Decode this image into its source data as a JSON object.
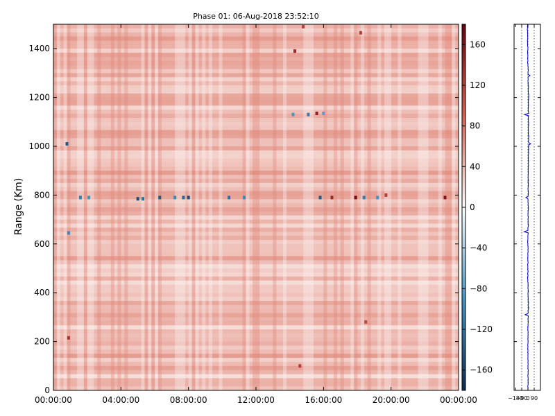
{
  "chart_data": [
    {
      "type": "heatmap",
      "title": "Phase 01: 06-Aug-2018 23:52:10",
      "xlabel": "",
      "ylabel": "Range (Km)",
      "x_ticks": [
        "00:00:00",
        "04:00:00",
        "08:00:00",
        "12:00:00",
        "16:00:00",
        "20:00:00",
        "00:00:00"
      ],
      "x_range_hours": [
        0,
        24
      ],
      "y_ticks": [
        0,
        200,
        400,
        600,
        800,
        1000,
        1200,
        1400
      ],
      "ylim": [
        0,
        1500
      ],
      "colorbar": {
        "ticks": [
          160,
          120,
          80,
          40,
          0,
          -40,
          -80,
          -120,
          -160
        ],
        "range": [
          -180,
          180
        ],
        "colors": {
          "low": "#0b2a55",
          "mid": "#ffffff",
          "high": "#67000d"
        }
      },
      "background_value": 35,
      "stripes_value_range": [
        15,
        65
      ],
      "hotspots": [
        {
          "hour": 0.8,
          "range": 1010,
          "value": -140
        },
        {
          "hour": 0.9,
          "range": 645,
          "value": -100
        },
        {
          "hour": 0.9,
          "range": 215,
          "value": 130
        },
        {
          "hour": 1.6,
          "range": 790,
          "value": -110
        },
        {
          "hour": 2.1,
          "range": 790,
          "value": -90
        },
        {
          "hour": 5.0,
          "range": 785,
          "value": -150
        },
        {
          "hour": 5.3,
          "range": 785,
          "value": -120
        },
        {
          "hour": 6.3,
          "range": 790,
          "value": -140
        },
        {
          "hour": 7.2,
          "range": 790,
          "value": -100
        },
        {
          "hour": 7.7,
          "range": 790,
          "value": -130
        },
        {
          "hour": 8.0,
          "range": 790,
          "value": -150
        },
        {
          "hour": 10.4,
          "range": 790,
          "value": -120
        },
        {
          "hour": 11.3,
          "range": 790,
          "value": -100
        },
        {
          "hour": 14.2,
          "range": 1130,
          "value": -90
        },
        {
          "hour": 15.1,
          "range": 1130,
          "value": -110
        },
        {
          "hour": 15.6,
          "range": 1135,
          "value": 150
        },
        {
          "hour": 16.0,
          "range": 1135,
          "value": -80
        },
        {
          "hour": 15.8,
          "range": 790,
          "value": -140
        },
        {
          "hour": 16.5,
          "range": 790,
          "value": 140
        },
        {
          "hour": 17.9,
          "range": 790,
          "value": 170
        },
        {
          "hour": 18.4,
          "range": 790,
          "value": -110
        },
        {
          "hour": 19.2,
          "range": 790,
          "value": -90
        },
        {
          "hour": 14.3,
          "range": 1390,
          "value": 140
        },
        {
          "hour": 14.8,
          "range": 1490,
          "value": 120
        },
        {
          "hour": 18.2,
          "range": 1465,
          "value": 120
        },
        {
          "hour": 19.7,
          "range": 800,
          "value": 120
        },
        {
          "hour": 23.2,
          "range": 790,
          "value": 160
        },
        {
          "hour": 14.6,
          "range": 100,
          "value": 120
        },
        {
          "hour": 18.5,
          "range": 280,
          "value": 110
        }
      ]
    },
    {
      "type": "line",
      "title": "",
      "xlabel": "",
      "ylabel": "",
      "x_ticks": [
        -180,
        -90,
        0,
        90
      ],
      "x_tick_labels": [
        "−180",
        "−90",
        "0",
        "90"
      ],
      "xlim": [
        -200,
        180
      ],
      "ylim": [
        0,
        1500
      ],
      "grid_x": [
        -90,
        0,
        90
      ],
      "series": [
        {
          "color": "#0000cc",
          "spikes": [
            {
              "range": 1130,
              "value": -50
            },
            {
              "range": 1010,
              "value": 40
            },
            {
              "range": 790,
              "value": -30
            },
            {
              "range": 650,
              "value": -55
            },
            {
              "range": 310,
              "value": -40
            },
            {
              "range": 1290,
              "value": 30
            }
          ]
        }
      ]
    }
  ]
}
